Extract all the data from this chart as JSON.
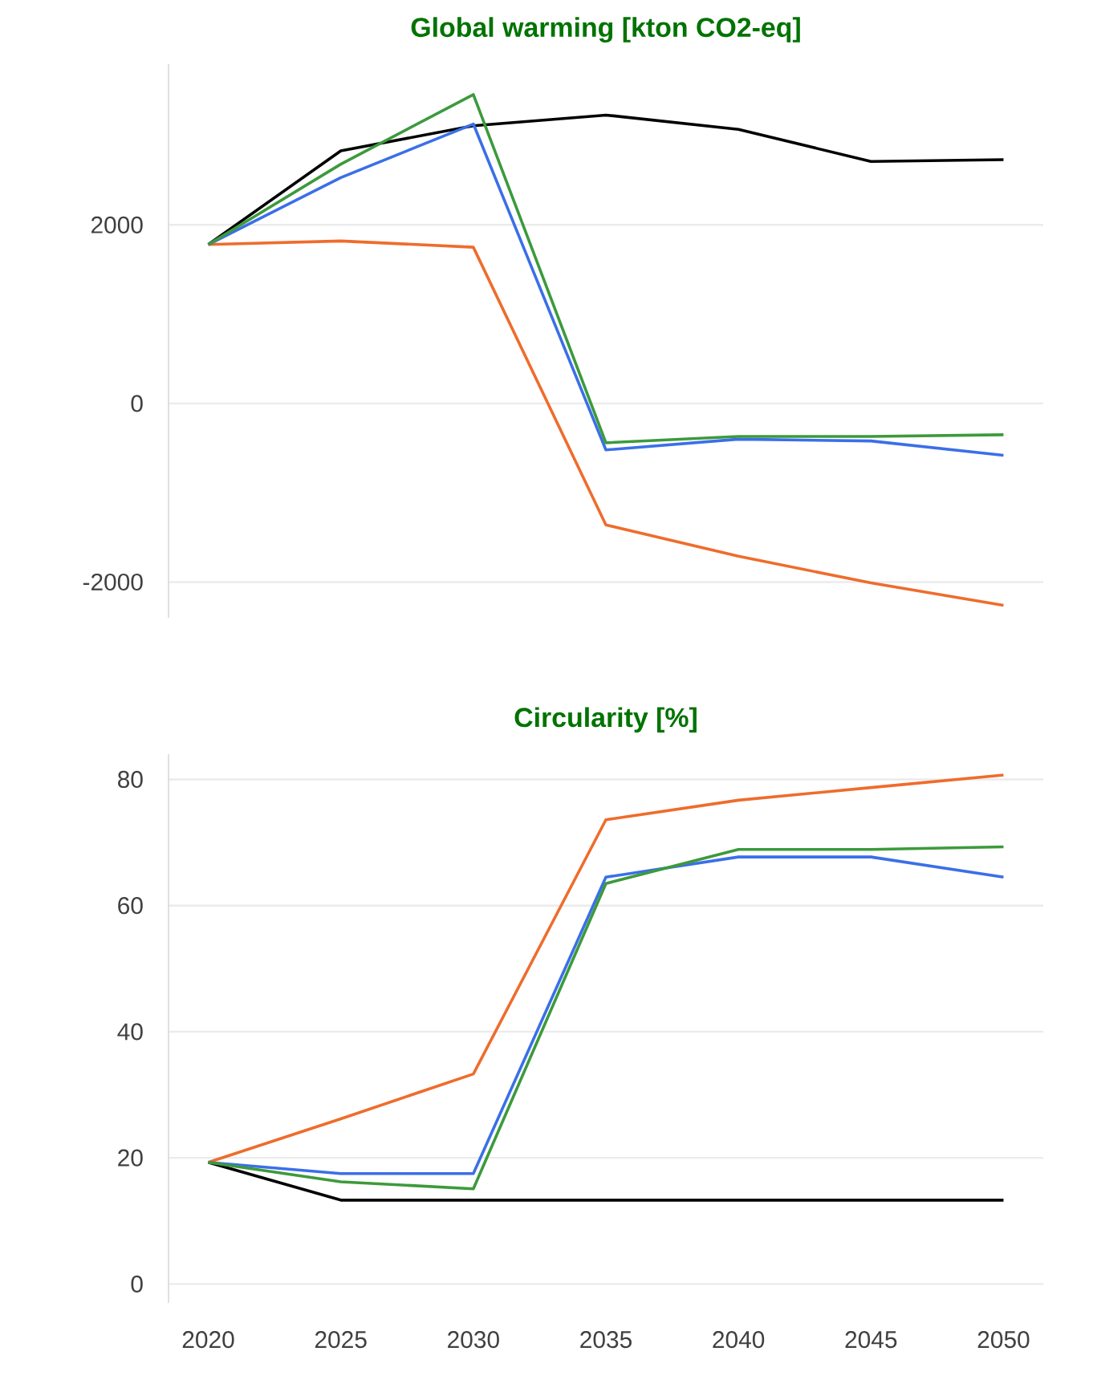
{
  "chart_data": [
    {
      "type": "line",
      "title": "Global warming [kton CO2-eq]",
      "x": [
        2020,
        2025,
        2030,
        2035,
        2040,
        2045,
        2050
      ],
      "xlim": [
        2018.5,
        2051.5
      ],
      "ylim": [
        -2400,
        3800
      ],
      "yticks": [
        -2000,
        0,
        2000
      ],
      "grid": "y",
      "tick_labels": "y",
      "series": [
        {
          "color": "#000000",
          "values": [
            1780,
            2830,
            3110,
            3230,
            3070,
            2710,
            2730
          ]
        },
        {
          "color": "#ef6c2c",
          "values": [
            1780,
            1820,
            1750,
            -1360,
            -1710,
            -2010,
            -2260
          ]
        },
        {
          "color": "#3b6fe8",
          "values": [
            1780,
            2530,
            3130,
            -520,
            -400,
            -420,
            -580
          ]
        },
        {
          "color": "#3c9a3c",
          "values": [
            1780,
            2680,
            3460,
            -440,
            -370,
            -370,
            -350
          ]
        }
      ]
    },
    {
      "type": "line",
      "title": "Circularity [%]",
      "x": [
        2020,
        2025,
        2030,
        2035,
        2040,
        2045,
        2050
      ],
      "xlim": [
        2018.5,
        2051.5
      ],
      "xticks": [
        2020,
        2025,
        2030,
        2035,
        2040,
        2045,
        2050
      ],
      "ylim": [
        -3,
        84
      ],
      "yticks": [
        0,
        20,
        40,
        60,
        80
      ],
      "grid": "y",
      "series": [
        {
          "color": "#000000",
          "values": [
            19.3,
            13.3,
            13.3,
            13.3,
            13.3,
            13.3,
            13.3
          ]
        },
        {
          "color": "#ef6c2c",
          "values": [
            19.3,
            26.2,
            33.3,
            73.6,
            76.7,
            78.7,
            80.7
          ]
        },
        {
          "color": "#3b6fe8",
          "values": [
            19.3,
            17.5,
            17.5,
            64.5,
            67.7,
            67.7,
            64.5
          ]
        },
        {
          "color": "#3c9a3c",
          "values": [
            19.3,
            16.2,
            15.1,
            63.5,
            68.9,
            68.9,
            69.3
          ]
        }
      ]
    }
  ]
}
